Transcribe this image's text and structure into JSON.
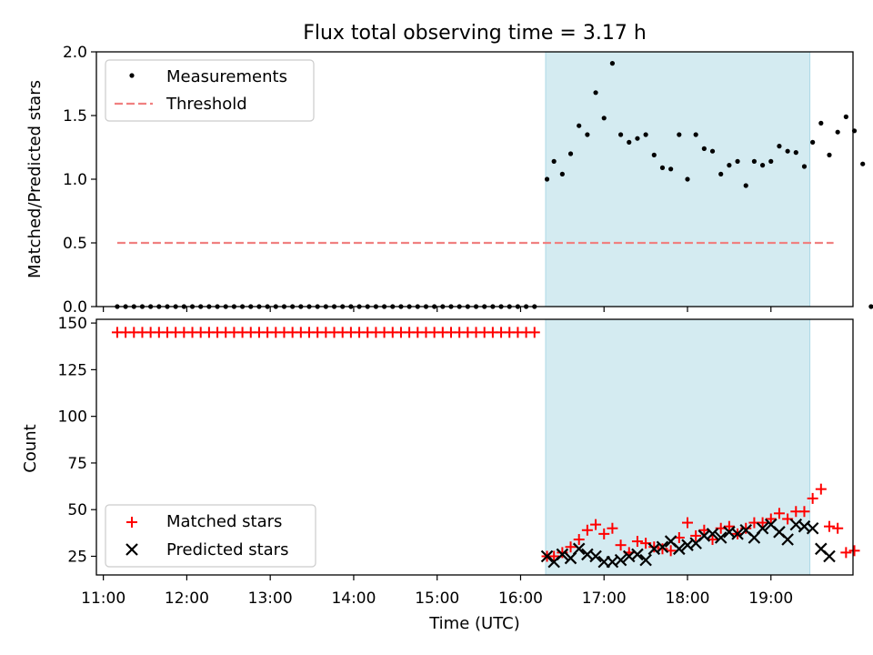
{
  "chart_data": [
    {
      "type": "scatter",
      "title": "Flux total observing time = 3.17 h",
      "ylabel": "Matched/Predicted stars",
      "xlim": [
        "10:55",
        "19:59"
      ],
      "ylim": [
        0,
        2.0
      ],
      "yticks": [
        "0.0",
        "0.5",
        "1.0",
        "1.5",
        "2.0"
      ],
      "legend_position": "upper-left",
      "shaded_interval": [
        "16:18",
        "19:28"
      ],
      "shade_color": "#d4ebf1",
      "series": [
        {
          "name": "Measurements",
          "marker": "dot",
          "color": "#000000",
          "points": [
            [
              "16:19",
              1.0
            ],
            [
              "16:24",
              1.14
            ],
            [
              "16:30",
              1.04
            ],
            [
              "16:36",
              1.2
            ],
            [
              "16:42",
              1.42
            ],
            [
              "16:48",
              1.35
            ],
            [
              "16:54",
              1.68
            ],
            [
              "17:00",
              1.48
            ],
            [
              "17:06",
              1.91
            ],
            [
              "17:12",
              1.35
            ],
            [
              "17:18",
              1.29
            ],
            [
              "17:24",
              1.32
            ],
            [
              "17:30",
              1.35
            ],
            [
              "17:36",
              1.19
            ],
            [
              "17:42",
              1.09
            ],
            [
              "17:48",
              1.08
            ],
            [
              "17:54",
              1.35
            ],
            [
              "18:00",
              1.0
            ],
            [
              "18:06",
              1.35
            ],
            [
              "18:12",
              1.24
            ],
            [
              "18:18",
              1.22
            ],
            [
              "18:24",
              1.04
            ],
            [
              "18:30",
              1.11
            ],
            [
              "18:36",
              1.14
            ],
            [
              "18:42",
              0.95
            ],
            [
              "18:48",
              1.14
            ],
            [
              "18:54",
              1.11
            ],
            [
              "19:00",
              1.14
            ],
            [
              "19:06",
              1.26
            ],
            [
              "19:12",
              1.22
            ],
            [
              "19:18",
              1.21
            ],
            [
              "19:24",
              1.1
            ],
            [
              "19:30",
              1.29
            ],
            [
              "19:36",
              1.44
            ],
            [
              "19:42",
              1.19
            ],
            [
              "19:48",
              1.37
            ],
            [
              "19:54",
              1.49
            ],
            [
              "20:00",
              1.38
            ],
            [
              "20:06",
              1.12
            ],
            [
              "20:12",
              0.0
            ]
          ],
          "zero_points": {
            "start": "11:10",
            "end": "16:13",
            "step_minutes": 6,
            "value": 0
          }
        },
        {
          "name": "Threshold",
          "type": "line",
          "dashed": true,
          "color": "#f08080",
          "x": [
            "11:10",
            "19:45"
          ],
          "y": [
            0.5,
            0.5
          ]
        }
      ]
    },
    {
      "type": "scatter",
      "xlabel": "Time (UTC)",
      "ylabel": "Count",
      "xlim": [
        "10:55",
        "19:59"
      ],
      "ylim": [
        15,
        152
      ],
      "yticks": [
        "25",
        "50",
        "75",
        "100",
        "125",
        "150"
      ],
      "xticks": [
        "11:00",
        "12:00",
        "13:00",
        "14:00",
        "15:00",
        "16:00",
        "17:00",
        "18:00",
        "19:00"
      ],
      "legend_position": "lower-left",
      "shaded_interval": [
        "16:18",
        "19:28"
      ],
      "shade_color": "#d4ebf1",
      "series": [
        {
          "name": "Matched stars",
          "marker": "plus",
          "color": "#ff0000",
          "points": [
            [
              "16:19",
              25
            ],
            [
              "16:24",
              25
            ],
            [
              "16:30",
              27
            ],
            [
              "16:36",
              30
            ],
            [
              "16:42",
              34
            ],
            [
              "16:48",
              39
            ],
            [
              "16:54",
              42
            ],
            [
              "17:00",
              37
            ],
            [
              "17:06",
              40
            ],
            [
              "17:12",
              31
            ],
            [
              "17:18",
              27
            ],
            [
              "17:24",
              33
            ],
            [
              "17:30",
              32
            ],
            [
              "17:36",
              30
            ],
            [
              "17:42",
              29
            ],
            [
              "17:48",
              28
            ],
            [
              "17:54",
              35
            ],
            [
              "18:00",
              43
            ],
            [
              "18:06",
              36
            ],
            [
              "18:12",
              39
            ],
            [
              "18:18",
              34
            ],
            [
              "18:24",
              40
            ],
            [
              "18:30",
              41
            ],
            [
              "18:36",
              37
            ],
            [
              "18:42",
              40
            ],
            [
              "18:48",
              43
            ],
            [
              "18:54",
              43
            ],
            [
              "19:00",
              45
            ],
            [
              "19:06",
              48
            ],
            [
              "19:12",
              45
            ],
            [
              "19:18",
              49
            ],
            [
              "19:24",
              49
            ],
            [
              "19:30",
              56
            ],
            [
              "19:36",
              61
            ],
            [
              "19:42",
              41
            ],
            [
              "19:48",
              40
            ],
            [
              "19:54",
              27
            ],
            [
              "20:00",
              28
            ]
          ],
          "flat_points": {
            "start": "11:10",
            "end": "16:13",
            "step_minutes": 6,
            "value": 145
          }
        },
        {
          "name": "Predicted stars",
          "marker": "x",
          "color": "#000000",
          "points": [
            [
              "16:19",
              25
            ],
            [
              "16:24",
              22
            ],
            [
              "16:30",
              26
            ],
            [
              "16:36",
              24
            ],
            [
              "16:42",
              29
            ],
            [
              "16:48",
              26
            ],
            [
              "16:54",
              25
            ],
            [
              "17:00",
              22
            ],
            [
              "17:06",
              22
            ],
            [
              "17:12",
              23
            ],
            [
              "17:18",
              25
            ],
            [
              "17:24",
              26
            ],
            [
              "17:30",
              23
            ],
            [
              "17:36",
              29
            ],
            [
              "17:42",
              30
            ],
            [
              "17:48",
              33
            ],
            [
              "17:54",
              29
            ],
            [
              "18:00",
              31
            ],
            [
              "18:06",
              32
            ],
            [
              "18:12",
              36
            ],
            [
              "18:18",
              37
            ],
            [
              "18:24",
              35
            ],
            [
              "18:30",
              38
            ],
            [
              "18:36",
              37
            ],
            [
              "18:42",
              39
            ],
            [
              "18:48",
              35
            ],
            [
              "18:54",
              40
            ],
            [
              "19:00",
              42
            ],
            [
              "19:06",
              38
            ],
            [
              "19:12",
              34
            ],
            [
              "19:18",
              42
            ],
            [
              "19:24",
              41
            ],
            [
              "19:30",
              40
            ],
            [
              "19:36",
              29
            ],
            [
              "19:42",
              25
            ]
          ]
        }
      ]
    }
  ]
}
